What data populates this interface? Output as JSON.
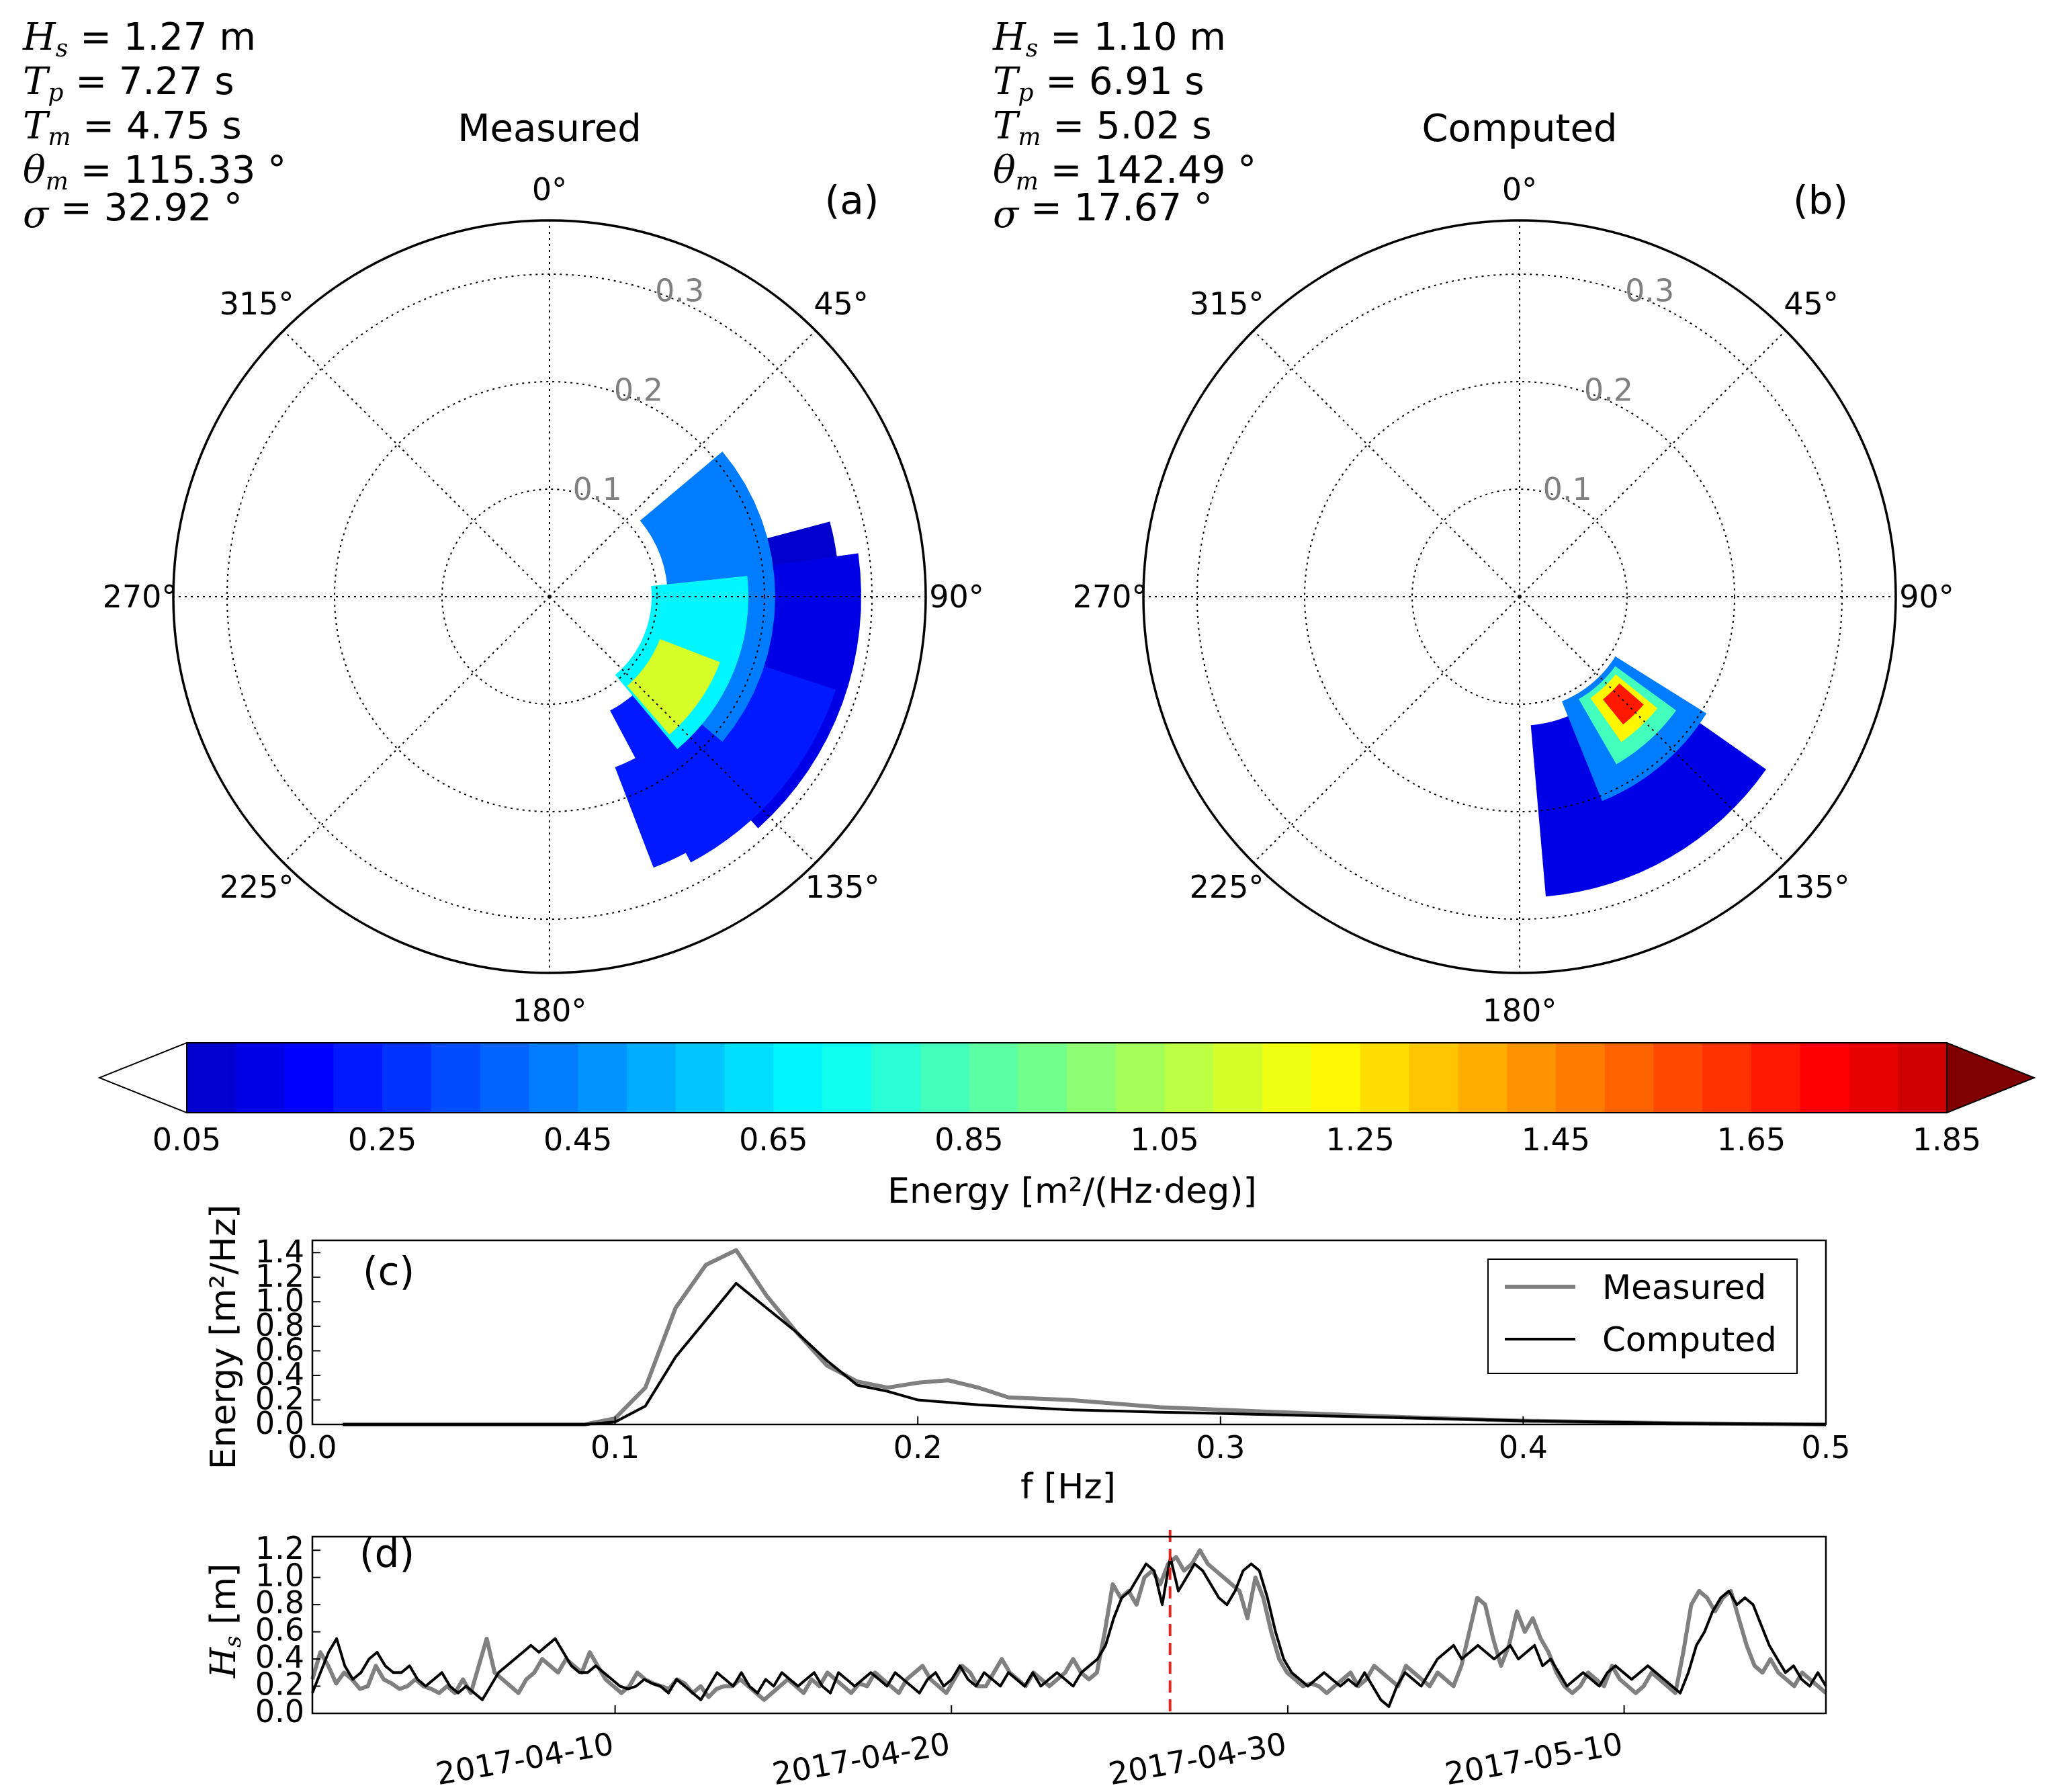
{
  "panels": {
    "a": {
      "title": "Measured",
      "label": "(a)",
      "stats": [
        {
          "sym": "H",
          "sub": "s",
          "text": " = 1.27 m"
        },
        {
          "sym": "T",
          "sub": "p",
          "text": " = 7.27 s"
        },
        {
          "sym": "T",
          "sub": "m",
          "text": " = 4.75 s"
        },
        {
          "sym": "θ",
          "sub": "m",
          "text": " = 115.33 °"
        },
        {
          "sym": "σ",
          "sub": "",
          "text": " = 32.92 °"
        }
      ]
    },
    "b": {
      "title": "Computed",
      "label": "(b)",
      "stats": [
        {
          "sym": "H",
          "sub": "s",
          "text": " = 1.10 m"
        },
        {
          "sym": "T",
          "sub": "p",
          "text": " = 6.91 s"
        },
        {
          "sym": "T",
          "sub": "m",
          "text": " = 5.02 s"
        },
        {
          "sym": "θ",
          "sub": "m",
          "text": " = 142.49 °"
        },
        {
          "sym": "σ",
          "sub": "",
          "text": " = 17.67 °"
        }
      ]
    },
    "c": {
      "label": "(c)"
    },
    "d": {
      "label": "(d)"
    }
  },
  "polar": {
    "angle_labels": [
      "0°",
      "45°",
      "90°",
      "135°",
      "180°",
      "225°",
      "270°",
      "315°"
    ],
    "radial_labels": [
      "0.1",
      "0.2",
      "0.3"
    ]
  },
  "colorbar": {
    "ticks": [
      "0.05",
      "0.25",
      "0.45",
      "0.65",
      "0.85",
      "1.05",
      "1.25",
      "1.45",
      "1.65",
      "1.85"
    ],
    "label": "Energy [m²/(Hz·deg)]",
    "min": 0.05,
    "max": 1.85,
    "step": 0.05,
    "under_color": "#ffffff",
    "over_color": "#7f0000"
  },
  "chart_data": [
    {
      "type": "heatmap",
      "id": "polar-measured",
      "title": "Measured",
      "description_units": "directional energy density m2/(Hz*deg), radial axis = frequency Hz",
      "blobs": [
        {
          "theta_deg": 95,
          "r": 0.21,
          "dtheta": 20,
          "dr": 0.06,
          "value": 0.08
        },
        {
          "theta_deg": 110,
          "r": 0.22,
          "dtheta": 28,
          "dr": 0.07,
          "value": 0.15
        },
        {
          "theta_deg": 130,
          "r": 0.2,
          "dtheta": 22,
          "dr": 0.08,
          "value": 0.2
        },
        {
          "theta_deg": 145,
          "r": 0.22,
          "dtheta": 14,
          "dr": 0.05,
          "value": 0.22
        },
        {
          "theta_deg": 90,
          "r": 0.16,
          "dtheta": 40,
          "dr": 0.05,
          "value": 0.4
        },
        {
          "theta_deg": 112,
          "r": 0.14,
          "dtheta": 28,
          "dr": 0.045,
          "value": 0.7
        },
        {
          "theta_deg": 125,
          "r": 0.14,
          "dtheta": 14,
          "dr": 0.03,
          "value": 1.1
        }
      ]
    },
    {
      "type": "heatmap",
      "id": "polar-computed",
      "title": "Computed",
      "description_units": "directional energy density m2/(Hz*deg), radial axis = frequency Hz",
      "blobs": [
        {
          "theta_deg": 150,
          "r": 0.2,
          "dtheta": 25,
          "dr": 0.08,
          "value": 0.12
        },
        {
          "theta_deg": 140,
          "r": 0.155,
          "dtheta": 18,
          "dr": 0.05,
          "value": 0.4
        },
        {
          "theta_deg": 138,
          "r": 0.145,
          "dtheta": 12,
          "dr": 0.035,
          "value": 0.8
        },
        {
          "theta_deg": 137,
          "r": 0.14,
          "dtheta": 8,
          "dr": 0.025,
          "value": 1.25
        },
        {
          "theta_deg": 136,
          "r": 0.138,
          "dtheta": 5,
          "dr": 0.015,
          "value": 1.7
        }
      ]
    },
    {
      "type": "line",
      "id": "spectrum",
      "xlabel": "f [Hz]",
      "ylabel": "Energy [m²/Hz]",
      "xlim": [
        0.0,
        0.5
      ],
      "ylim": [
        0.0,
        1.5
      ],
      "xticks": [
        "0.0",
        "0.1",
        "0.2",
        "0.3",
        "0.4",
        "0.5"
      ],
      "yticks": [
        "0.0",
        "0.2",
        "0.4",
        "0.6",
        "0.8",
        "1.0",
        "1.2",
        "1.4"
      ],
      "series": [
        {
          "name": "Measured",
          "color": "#808080",
          "width": 3,
          "x": [
            0.01,
            0.05,
            0.09,
            0.1,
            0.11,
            0.12,
            0.13,
            0.14,
            0.15,
            0.16,
            0.17,
            0.18,
            0.19,
            0.2,
            0.21,
            0.22,
            0.23,
            0.25,
            0.28,
            0.3,
            0.33,
            0.36,
            0.4,
            0.45,
            0.5
          ],
          "y": [
            0.0,
            0.0,
            0.0,
            0.05,
            0.3,
            0.95,
            1.3,
            1.42,
            1.05,
            0.75,
            0.48,
            0.35,
            0.3,
            0.34,
            0.36,
            0.3,
            0.22,
            0.2,
            0.14,
            0.12,
            0.09,
            0.06,
            0.03,
            0.01,
            0.0
          ]
        },
        {
          "name": "Computed",
          "color": "#000000",
          "width": 2,
          "x": [
            0.01,
            0.05,
            0.09,
            0.1,
            0.11,
            0.12,
            0.13,
            0.14,
            0.15,
            0.16,
            0.17,
            0.18,
            0.19,
            0.2,
            0.22,
            0.25,
            0.28,
            0.3,
            0.35,
            0.4,
            0.45,
            0.5
          ],
          "y": [
            0.0,
            0.0,
            0.0,
            0.02,
            0.15,
            0.55,
            0.85,
            1.15,
            0.95,
            0.75,
            0.52,
            0.32,
            0.27,
            0.2,
            0.16,
            0.12,
            0.1,
            0.09,
            0.06,
            0.03,
            0.01,
            0.0
          ]
        }
      ]
    },
    {
      "type": "line",
      "id": "hs-timeseries",
      "ylabel": "H_s [m]",
      "xlim_days": [
        0,
        45
      ],
      "ylim": [
        0.0,
        1.3
      ],
      "xticks": [
        {
          "day": 9,
          "label": "2017-04-10"
        },
        {
          "day": 19,
          "label": "2017-04-20"
        },
        {
          "day": 29,
          "label": "2017-04-30"
        },
        {
          "day": 39,
          "label": "2017-05-10"
        }
      ],
      "yticks": [
        "0.0",
        "0.2",
        "0.4",
        "0.6",
        "0.8",
        "1.0",
        "1.2"
      ],
      "marker_day": 25.5,
      "marker_color": "#e0271e",
      "series": [
        {
          "name": "Measured",
          "color": "#808080",
          "width": 3,
          "y": [
            0.25,
            0.45,
            0.35,
            0.22,
            0.3,
            0.25,
            0.18,
            0.2,
            0.35,
            0.25,
            0.22,
            0.18,
            0.2,
            0.25,
            0.2,
            0.18,
            0.15,
            0.2,
            0.15,
            0.25,
            0.15,
            0.35,
            0.55,
            0.3,
            0.25,
            0.2,
            0.15,
            0.25,
            0.3,
            0.4,
            0.35,
            0.3,
            0.4,
            0.35,
            0.3,
            0.45,
            0.35,
            0.25,
            0.2,
            0.15,
            0.2,
            0.3,
            0.25,
            0.22,
            0.2,
            0.18,
            0.25,
            0.22,
            0.15,
            0.2,
            0.12,
            0.18,
            0.2,
            0.2,
            0.25,
            0.2,
            0.15,
            0.1,
            0.15,
            0.2,
            0.25,
            0.2,
            0.15,
            0.25,
            0.2,
            0.3,
            0.25,
            0.2,
            0.15,
            0.22,
            0.2,
            0.3,
            0.25,
            0.2,
            0.15,
            0.25,
            0.3,
            0.35,
            0.25,
            0.2,
            0.15,
            0.25,
            0.35,
            0.3,
            0.2,
            0.2,
            0.3,
            0.4,
            0.3,
            0.25,
            0.2,
            0.3,
            0.25,
            0.2,
            0.25,
            0.3,
            0.4,
            0.3,
            0.25,
            0.3,
            0.6,
            0.95,
            0.85,
            0.9,
            0.8,
            1.0,
            1.05,
            0.95,
            1.1,
            1.15,
            1.05,
            1.1,
            1.2,
            1.1,
            1.05,
            1.0,
            0.95,
            0.9,
            0.7,
            1.0,
            0.85,
            0.6,
            0.4,
            0.3,
            0.25,
            0.2,
            0.22,
            0.2,
            0.15,
            0.2,
            0.25,
            0.3,
            0.2,
            0.25,
            0.35,
            0.3,
            0.25,
            0.2,
            0.35,
            0.3,
            0.25,
            0.2,
            0.3,
            0.25,
            0.2,
            0.35,
            0.6,
            0.85,
            0.8,
            0.55,
            0.35,
            0.5,
            0.75,
            0.6,
            0.7,
            0.55,
            0.45,
            0.3,
            0.2,
            0.15,
            0.2,
            0.3,
            0.25,
            0.2,
            0.35,
            0.25,
            0.2,
            0.15,
            0.2,
            0.3,
            0.25,
            0.2,
            0.15,
            0.45,
            0.8,
            0.9,
            0.85,
            0.75,
            0.85,
            0.9,
            0.7,
            0.5,
            0.35,
            0.3,
            0.4,
            0.3,
            0.25,
            0.2,
            0.3,
            0.25,
            0.2,
            0.15
          ]
        },
        {
          "name": "Computed",
          "color": "#000000",
          "width": 2,
          "y": [
            0.15,
            0.3,
            0.45,
            0.55,
            0.35,
            0.25,
            0.3,
            0.4,
            0.45,
            0.35,
            0.3,
            0.3,
            0.35,
            0.25,
            0.2,
            0.25,
            0.3,
            0.2,
            0.15,
            0.2,
            0.15,
            0.1,
            0.2,
            0.3,
            0.35,
            0.4,
            0.45,
            0.5,
            0.45,
            0.5,
            0.55,
            0.45,
            0.35,
            0.3,
            0.3,
            0.35,
            0.3,
            0.25,
            0.2,
            0.18,
            0.2,
            0.25,
            0.22,
            0.2,
            0.15,
            0.25,
            0.2,
            0.15,
            0.1,
            0.2,
            0.3,
            0.25,
            0.2,
            0.3,
            0.2,
            0.15,
            0.25,
            0.2,
            0.3,
            0.25,
            0.2,
            0.25,
            0.3,
            0.2,
            0.15,
            0.3,
            0.25,
            0.2,
            0.25,
            0.3,
            0.25,
            0.2,
            0.3,
            0.25,
            0.2,
            0.15,
            0.25,
            0.3,
            0.2,
            0.25,
            0.35,
            0.25,
            0.2,
            0.3,
            0.25,
            0.2,
            0.3,
            0.25,
            0.2,
            0.3,
            0.2,
            0.25,
            0.3,
            0.25,
            0.2,
            0.3,
            0.35,
            0.4,
            0.5,
            0.7,
            0.85,
            0.9,
            1.0,
            1.1,
            1.05,
            0.8,
            1.15,
            0.9,
            1.0,
            1.1,
            1.05,
            0.95,
            0.85,
            0.8,
            0.9,
            1.05,
            1.1,
            1.05,
            0.85,
            0.6,
            0.4,
            0.3,
            0.25,
            0.2,
            0.25,
            0.3,
            0.25,
            0.2,
            0.25,
            0.2,
            0.3,
            0.2,
            0.1,
            0.05,
            0.2,
            0.3,
            0.25,
            0.2,
            0.3,
            0.4,
            0.45,
            0.5,
            0.4,
            0.45,
            0.5,
            0.45,
            0.4,
            0.45,
            0.5,
            0.4,
            0.45,
            0.5,
            0.35,
            0.4,
            0.3,
            0.2,
            0.25,
            0.3,
            0.25,
            0.2,
            0.3,
            0.35,
            0.3,
            0.25,
            0.3,
            0.35,
            0.3,
            0.25,
            0.2,
            0.15,
            0.3,
            0.5,
            0.6,
            0.75,
            0.85,
            0.9,
            0.8,
            0.85,
            0.8,
            0.65,
            0.5,
            0.4,
            0.3,
            0.35,
            0.25,
            0.2,
            0.3,
            0.2
          ]
        }
      ]
    }
  ]
}
